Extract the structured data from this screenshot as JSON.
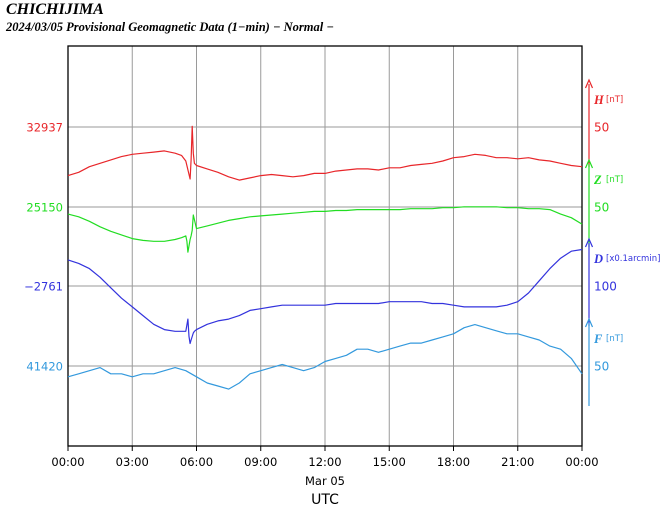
{
  "title": "CHICHIJIMA",
  "subtitle": "2024/03/05  Provisional Geomagnetic Data (1−min)  − Normal −",
  "chart_data": {
    "type": "line",
    "date_label": "Mar 05",
    "xlabel": "UTC",
    "x_ticks": [
      "00:00",
      "03:00",
      "06:00",
      "09:00",
      "12:00",
      "15:00",
      "18:00",
      "21:00",
      "00:00"
    ],
    "x_range_hours": [
      0,
      24
    ],
    "grid": true,
    "series": [
      {
        "name": "H",
        "unit": "[nT]",
        "color": "#e8262a",
        "baseline_label": "32937",
        "scale_label": "50",
        "row_span": [
          25.6,
          150.4
        ],
        "x": [
          0,
          0.5,
          1,
          1.5,
          2,
          2.5,
          3,
          3.5,
          4,
          4.5,
          5,
          5.3,
          5.5,
          5.7,
          5.75,
          5.8,
          5.85,
          5.9,
          6,
          6.5,
          7,
          7.5,
          8,
          8.5,
          9,
          9.5,
          10,
          10.5,
          11,
          11.5,
          12,
          12.5,
          13,
          13.5,
          14,
          14.5,
          15,
          15.5,
          16,
          16.5,
          17,
          17.5,
          18,
          18.5,
          19,
          19.5,
          20,
          20.5,
          21,
          21.5,
          22,
          22.5,
          23,
          23.5,
          24
        ],
        "values": [
          12,
          18,
          28,
          34,
          40,
          46,
          50,
          52,
          54,
          56,
          52,
          48,
          38,
          6,
          40,
          100,
          52,
          34,
          30,
          24,
          18,
          10,
          4,
          8,
          12,
          14,
          12,
          10,
          12,
          16,
          16,
          20,
          22,
          24,
          24,
          22,
          26,
          26,
          30,
          32,
          34,
          38,
          44,
          46,
          50,
          48,
          44,
          44,
          42,
          44,
          40,
          38,
          34,
          30,
          28
        ]
      },
      {
        "name": "Z",
        "unit": "[nT]",
        "color": "#22dd22",
        "baseline_label": "25150",
        "scale_label": "50",
        "row_span": [
          25.2,
          175.2
        ],
        "x": [
          0,
          0.5,
          1,
          1.5,
          2,
          2.5,
          3,
          3.5,
          4,
          4.5,
          5,
          5.3,
          5.5,
          5.55,
          5.6,
          5.7,
          5.75,
          5.8,
          5.85,
          6,
          6.5,
          7,
          7.5,
          8,
          8.5,
          9,
          9.5,
          10,
          10.5,
          11,
          11.5,
          12,
          12.5,
          13,
          13.5,
          14,
          14.5,
          15,
          15.5,
          16,
          16.5,
          17,
          17.5,
          18,
          18.5,
          19,
          19.5,
          20,
          20.5,
          21,
          21.5,
          22,
          22.5,
          23,
          23.5,
          24
        ],
        "values": [
          100,
          94,
          84,
          72,
          62,
          54,
          46,
          42,
          40,
          40,
          44,
          48,
          52,
          40,
          16,
          44,
          52,
          64,
          98,
          68,
          74,
          80,
          86,
          90,
          94,
          96,
          98,
          100,
          102,
          104,
          106,
          106,
          108,
          108,
          110,
          110,
          110,
          110,
          110,
          112,
          112,
          112,
          114,
          114,
          116,
          116,
          116,
          116,
          114,
          114,
          112,
          112,
          110,
          100,
          92,
          78
        ]
      },
      {
        "name": "D",
        "unit": "[x0.1arcmin]",
        "color": "#3333dd",
        "baseline_label": "−2761",
        "scale_label": "100",
        "row_span": [
          23.5,
          129.2
        ],
        "x": [
          0,
          0.5,
          1,
          1.5,
          2,
          2.5,
          3,
          3.5,
          4,
          4.5,
          5,
          5.3,
          5.5,
          5.6,
          5.65,
          5.7,
          5.75,
          5.8,
          5.85,
          5.9,
          6,
          6.5,
          7,
          7.5,
          8,
          8.5,
          9,
          9.5,
          10,
          10.5,
          11,
          11.5,
          12,
          12.5,
          13,
          13.5,
          14,
          14.5,
          15,
          15.5,
          16,
          16.5,
          17,
          17.5,
          18,
          18.5,
          19,
          19.5,
          20,
          20.5,
          21,
          21.5,
          22,
          22.5,
          23,
          23.5,
          24
        ],
        "values": [
          104,
          100,
          94,
          84,
          72,
          60,
          50,
          40,
          30,
          24,
          22,
          22,
          22,
          36,
          16,
          8,
          12,
          16,
          20,
          22,
          24,
          30,
          34,
          36,
          40,
          46,
          48,
          50,
          52,
          52,
          52,
          52,
          52,
          54,
          54,
          54,
          54,
          54,
          56,
          56,
          56,
          56,
          54,
          54,
          52,
          50,
          50,
          50,
          50,
          52,
          56,
          66,
          80,
          94,
          106,
          114,
          116
        ]
      },
      {
        "name": "F",
        "unit": "[nT]",
        "color": "#3399dd",
        "baseline_label": "41420",
        "scale_label": "50",
        "row_span": [
          -27,
          22.5
        ],
        "x": [
          0,
          0.5,
          1,
          1.5,
          2,
          2.5,
          3,
          3.5,
          4,
          4.5,
          5,
          5.5,
          6,
          6.5,
          7,
          7.5,
          8,
          8.5,
          9,
          9.5,
          10,
          10.5,
          11,
          11.5,
          12,
          12.5,
          13,
          13.5,
          14,
          14.5,
          15,
          15.5,
          16,
          16.5,
          17,
          17.5,
          18,
          18.5,
          19,
          19.5,
          20,
          20.5,
          21,
          21.5,
          22,
          22.5,
          23,
          23.5,
          24
        ],
        "values": [
          -8,
          -6,
          -4,
          -2,
          -6,
          -6,
          -8,
          -6,
          -6,
          -4,
          -2,
          -4,
          -8,
          -12,
          -14,
          -16,
          -12,
          -6,
          -4,
          -2,
          0,
          -2,
          -4,
          -2,
          2,
          4,
          6,
          10,
          10,
          8,
          10,
          12,
          14,
          14,
          16,
          18,
          20,
          24,
          26,
          24,
          22,
          20,
          20,
          18,
          16,
          12,
          10,
          4,
          -6
        ]
      }
    ]
  }
}
